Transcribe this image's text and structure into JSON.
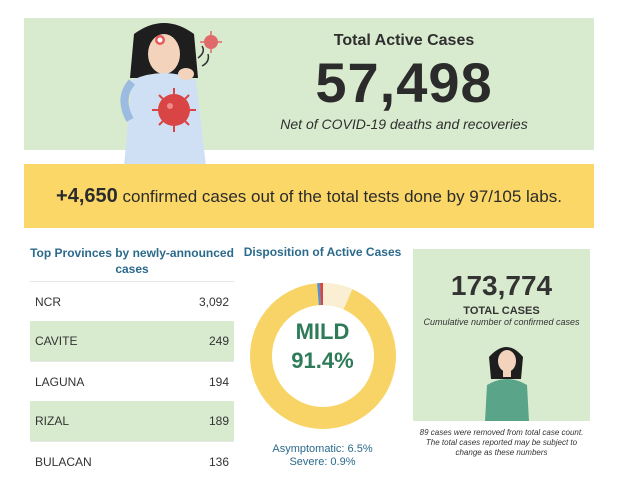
{
  "hero": {
    "title": "Total Active Cases",
    "value": "57,498",
    "subtitle": "Net of COVID-19 deaths and recoveries",
    "illustration": "sick-woman-coughing-icon"
  },
  "banner": {
    "number": "+4,650",
    "text": " confirmed cases out of the total tests done by 97/105 labs."
  },
  "provinces": {
    "title": "Top Provinces by newly-announced cases",
    "rows": [
      {
        "name": "NCR",
        "value": "3,092"
      },
      {
        "name": "CAVITE",
        "value": "249"
      },
      {
        "name": "LAGUNA",
        "value": "194"
      },
      {
        "name": "RIZAL",
        "value": "189"
      },
      {
        "name": "BULACAN",
        "value": "136"
      }
    ]
  },
  "disposition": {
    "title": "Disposition of Active Cases",
    "center_label": "MILD",
    "center_value": "91.4%",
    "legend": [
      "Asymptomatic: 6.5%",
      "Severe: 0.9%"
    ]
  },
  "totals": {
    "value": "173,774",
    "label": "TOTAL CASES",
    "sublabel": "Cumulative number of confirmed cases",
    "note": "89 cases were removed from total case count. The total cases reported may be subject to change as these numbers"
  },
  "colors": {
    "hero_bg": "#d8ebcf",
    "banner_bg": "#fbd767",
    "heading_blue": "#2b6a8c",
    "mild_green": "#2e7b59",
    "donut_mild": "#f8d466",
    "donut_asymptomatic": "#faefd2",
    "donut_severe": "#5a8fd0",
    "donut_critical": "#d64545"
  }
}
